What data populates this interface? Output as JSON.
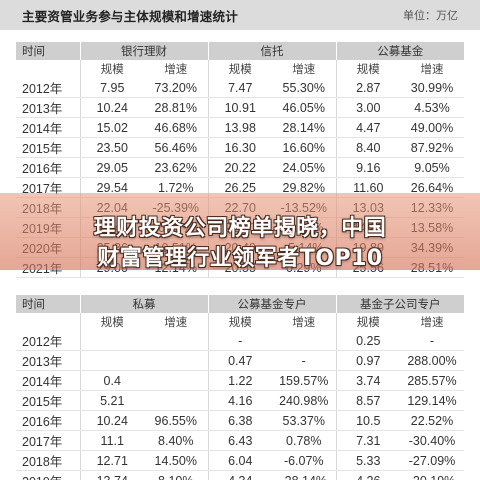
{
  "header": {
    "title": "主要资管业务参与主体规模和增速统计",
    "unit": "单位：万亿"
  },
  "table1": {
    "groups": [
      "时间",
      "银行理财",
      "信托",
      "公募基金"
    ],
    "subs": [
      "规模",
      "增速",
      "规模",
      "增速",
      "规模",
      "增速"
    ],
    "rows": [
      [
        "2012年",
        "7.95",
        "73.20%",
        "7.47",
        "55.30%",
        "2.87",
        "30.99%"
      ],
      [
        "2013年",
        "10.24",
        "28.81%",
        "10.91",
        "46.05%",
        "3.00",
        "4.53%"
      ],
      [
        "2014年",
        "15.02",
        "46.68%",
        "13.98",
        "28.14%",
        "4.47",
        "49.00%"
      ],
      [
        "2015年",
        "23.50",
        "56.46%",
        "16.30",
        "16.60%",
        "8.40",
        "87.92%"
      ],
      [
        "2016年",
        "29.05",
        "23.62%",
        "20.22",
        "24.05%",
        "9.16",
        "9.05%"
      ],
      [
        "2017年",
        "29.54",
        "1.72%",
        "26.25",
        "29.82%",
        "11.60",
        "26.64%"
      ],
      [
        "2018年",
        "22.04",
        "-25.39%",
        "22.70",
        "-13.52%",
        "13.03",
        "12.33%"
      ],
      [
        "2019年",
        "23.40",
        "6.17%",
        "21.60",
        "-4.85%",
        "14.80",
        "13.58%"
      ],
      [
        "2020年",
        "25.86",
        "10.51%",
        "20.49",
        "-5.14%",
        "19.89",
        "34.39%"
      ],
      [
        "2021年",
        "29.00",
        "12.14%",
        "20.55",
        "0.29%",
        "25.56",
        "28.51%"
      ]
    ]
  },
  "table2": {
    "groups": [
      "时间",
      "私募",
      "公募基金专户",
      "基金子公司专户"
    ],
    "subs": [
      "规模",
      "增速",
      "规模",
      "增速",
      "规模",
      "增速"
    ],
    "rows": [
      [
        "2012年",
        "",
        "",
        "-",
        "",
        "0.25",
        "-"
      ],
      [
        "2013年",
        "",
        "",
        "0.47",
        "-",
        "0.97",
        "288.00%"
      ],
      [
        "2014年",
        "0.4",
        "",
        "1.22",
        "159.57%",
        "3.74",
        "285.57%"
      ],
      [
        "2015年",
        "5.21",
        "",
        "4.16",
        "240.98%",
        "8.57",
        "129.14%"
      ],
      [
        "2016年",
        "10.24",
        "96.55%",
        "6.38",
        "53.37%",
        "10.5",
        "22.52%"
      ],
      [
        "2017年",
        "11.1",
        "8.40%",
        "6.43",
        "0.78%",
        "7.31",
        "-30.40%"
      ],
      [
        "2018年",
        "12.71",
        "14.50%",
        "6.04",
        "-6.07%",
        "5.33",
        "-27.09%"
      ],
      [
        "2019年",
        "13.74",
        "8.10%",
        "4.34",
        "-28.14%",
        "4.26",
        "-20.19%"
      ]
    ]
  },
  "banner": {
    "line1": "理财投资公司榜单揭晓，中国",
    "line2": "财富管理行业领军者TOP10"
  }
}
